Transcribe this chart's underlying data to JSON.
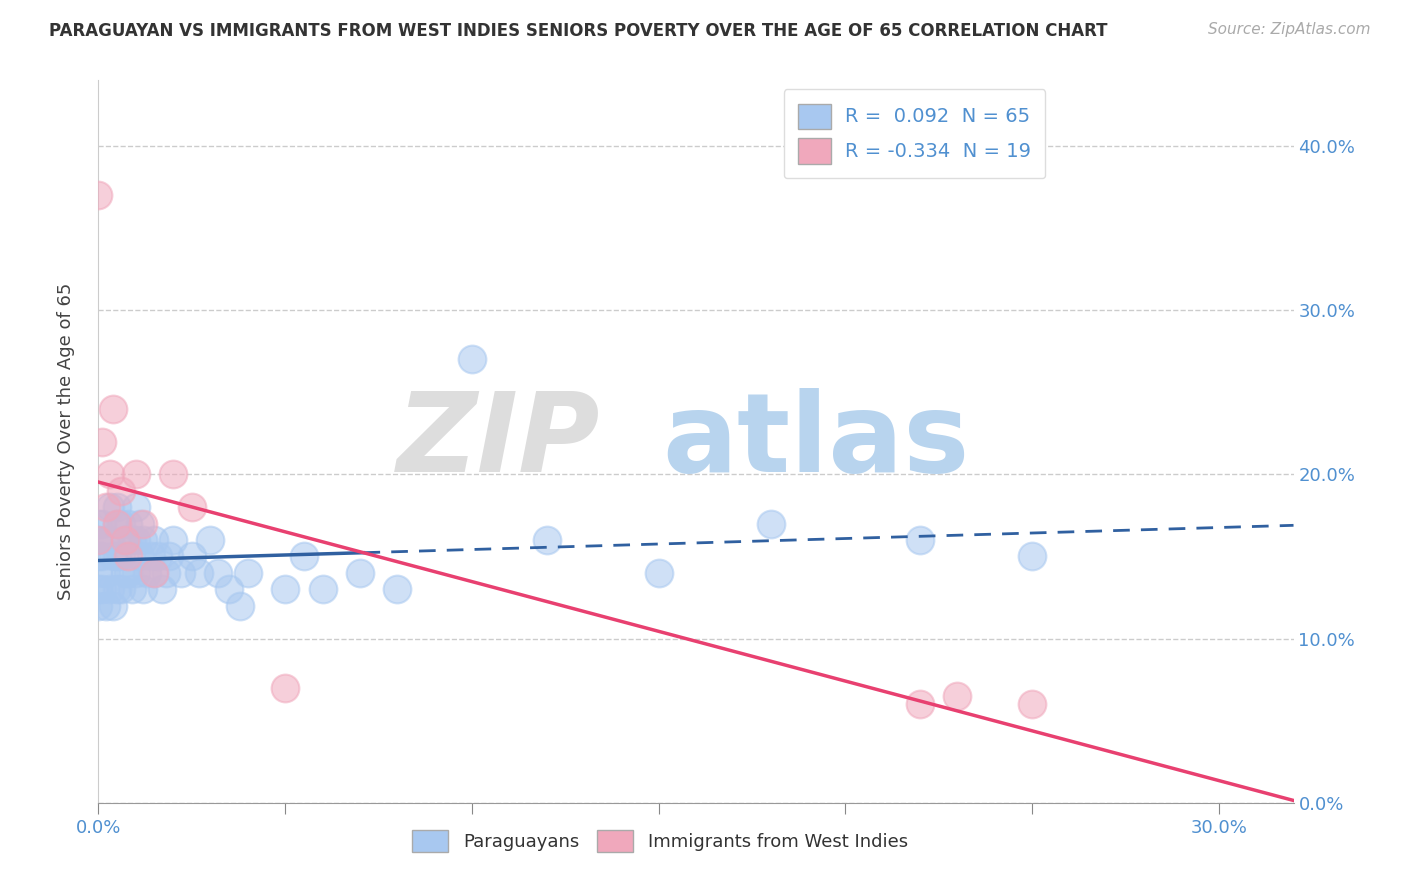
{
  "title": "PARAGUAYAN VS IMMIGRANTS FROM WEST INDIES SENIORS POVERTY OVER THE AGE OF 65 CORRELATION CHART",
  "source": "Source: ZipAtlas.com",
  "ylabel": "Seniors Poverty Over the Age of 65",
  "xlim": [
    0.0,
    0.32
  ],
  "ylim": [
    0.0,
    0.44
  ],
  "legend1_label": "R =  0.092  N = 65",
  "legend2_label": "R = -0.334  N = 19",
  "legend_bottom_label1": "Paraguayans",
  "legend_bottom_label2": "Immigrants from West Indies",
  "blue_color": "#a8c8f0",
  "pink_color": "#f0a8bc",
  "blue_line_color": "#3060a0",
  "pink_line_color": "#e84070",
  "blue_dash_color": "#8ab0d8",
  "ytick_vals": [
    0.0,
    0.1,
    0.2,
    0.3,
    0.4
  ],
  "ytick_labels": [
    "0.0%",
    "10.0%",
    "20.0%",
    "30.0%",
    "40.0%"
  ],
  "paraguayan_x": [
    0.0,
    0.0,
    0.0,
    0.0,
    0.0,
    0.0,
    0.001,
    0.001,
    0.001,
    0.002,
    0.002,
    0.002,
    0.003,
    0.003,
    0.003,
    0.004,
    0.004,
    0.005,
    0.005,
    0.005,
    0.005,
    0.006,
    0.006,
    0.006,
    0.007,
    0.007,
    0.008,
    0.008,
    0.009,
    0.009,
    0.01,
    0.01,
    0.01,
    0.011,
    0.011,
    0.012,
    0.012,
    0.013,
    0.014,
    0.015,
    0.015,
    0.016,
    0.017,
    0.018,
    0.019,
    0.02,
    0.022,
    0.025,
    0.027,
    0.03,
    0.032,
    0.035,
    0.038,
    0.04,
    0.05,
    0.055,
    0.06,
    0.07,
    0.08,
    0.1,
    0.12,
    0.15,
    0.18,
    0.22,
    0.25
  ],
  "paraguayan_y": [
    0.17,
    0.16,
    0.15,
    0.14,
    0.13,
    0.12,
    0.17,
    0.15,
    0.13,
    0.16,
    0.14,
    0.12,
    0.18,
    0.16,
    0.13,
    0.15,
    0.12,
    0.18,
    0.17,
    0.15,
    0.13,
    0.17,
    0.15,
    0.13,
    0.16,
    0.14,
    0.17,
    0.14,
    0.16,
    0.13,
    0.18,
    0.16,
    0.14,
    0.17,
    0.15,
    0.16,
    0.13,
    0.14,
    0.15,
    0.16,
    0.14,
    0.15,
    0.13,
    0.14,
    0.15,
    0.16,
    0.14,
    0.15,
    0.14,
    0.16,
    0.14,
    0.13,
    0.12,
    0.14,
    0.13,
    0.15,
    0.13,
    0.14,
    0.13,
    0.27,
    0.16,
    0.14,
    0.17,
    0.16,
    0.15
  ],
  "westindies_x": [
    0.0,
    0.0,
    0.001,
    0.002,
    0.003,
    0.004,
    0.005,
    0.006,
    0.007,
    0.008,
    0.01,
    0.012,
    0.015,
    0.02,
    0.025,
    0.05,
    0.22,
    0.23,
    0.25
  ],
  "westindies_y": [
    0.37,
    0.16,
    0.22,
    0.18,
    0.2,
    0.24,
    0.17,
    0.19,
    0.16,
    0.15,
    0.2,
    0.17,
    0.14,
    0.2,
    0.18,
    0.07,
    0.06,
    0.065,
    0.06
  ]
}
